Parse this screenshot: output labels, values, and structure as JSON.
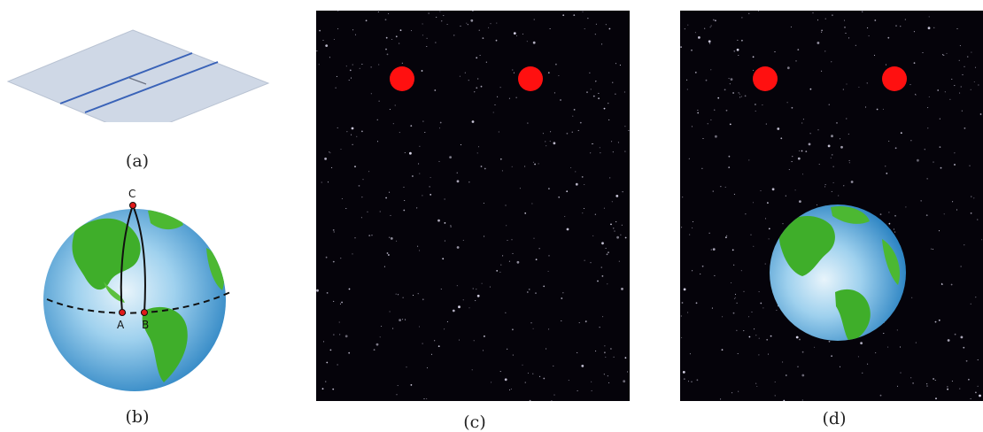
{
  "figure": {
    "panels": [
      {
        "id": "a",
        "caption": "(a)",
        "description_icon": "flat-plane-parallel-lines"
      },
      {
        "id": "b",
        "caption": "(b)",
        "description_icon": "globe-geodesic-triangle",
        "points": [
          "C",
          "A",
          "B"
        ]
      },
      {
        "id": "c",
        "caption": "(c)",
        "description_icon": "starfield-two-red-dots"
      },
      {
        "id": "d",
        "caption": "(d)",
        "description_icon": "starfield-two-red-dots-earth"
      }
    ],
    "colors": {
      "plane_fill": "#cfd8e6",
      "plane_lines": "#3a63b8",
      "space_bg": "#05030a",
      "red_dot": "#ff1010",
      "ocean": "#3f9fd6",
      "land": "#3fae2a",
      "path": "#111111"
    }
  }
}
